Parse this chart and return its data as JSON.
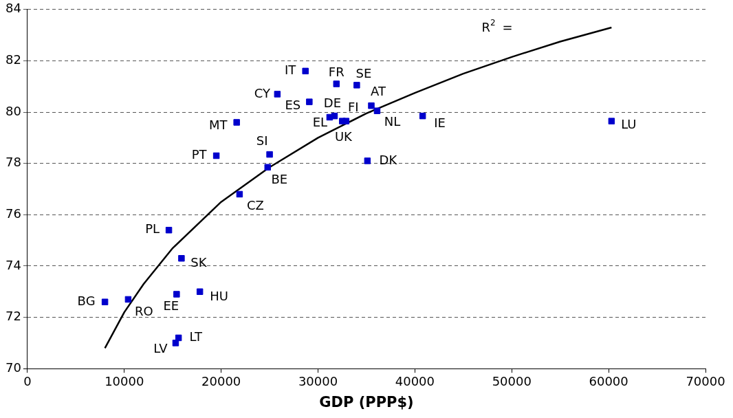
{
  "chart_data": {
    "type": "scatter",
    "xlabel": "GDP (PPP$)",
    "xlim": [
      0,
      70000
    ],
    "xticks": [
      0,
      10000,
      20000,
      30000,
      40000,
      50000,
      60000,
      70000
    ],
    "ylim": [
      70,
      84
    ],
    "yticks": [
      70,
      72,
      74,
      76,
      78,
      80,
      82,
      84
    ],
    "grid": "y",
    "legend": false,
    "marker": "square",
    "series": [
      {
        "color": "#0000cc",
        "x": [
          28700,
          31900,
          34000,
          25800,
          29100,
          31700,
          31200,
          32500,
          32900,
          35500,
          36100,
          40800,
          60300,
          35100,
          21600,
          19500,
          25000,
          24800,
          21900,
          14600,
          15900,
          17800,
          15400,
          8000,
          10400,
          15600,
          15300
        ],
        "values": [
          81.6,
          81.1,
          81.05,
          80.7,
          80.4,
          79.85,
          79.8,
          79.65,
          79.65,
          80.25,
          80.05,
          79.85,
          79.65,
          78.1,
          79.6,
          78.3,
          78.35,
          77.85,
          76.8,
          75.4,
          74.3,
          73,
          72.9,
          72.6,
          72.7,
          71.2,
          71
        ]
      },
      {
        "type": "line",
        "color": "#000000",
        "marker": "none",
        "x": [
          8000,
          10000,
          12000,
          15000,
          20000,
          25000,
          30000,
          35000,
          40000,
          45000,
          50000,
          55000,
          60300
        ],
        "values": [
          70.8,
          72.2,
          73.3,
          74.7,
          76.5,
          77.85,
          79,
          79.95,
          80.75,
          81.5,
          82.15,
          82.75,
          83.3
        ]
      }
    ],
    "annotations": [
      {
        "text": "IT",
        "x": 28700,
        "y": 81.6
      },
      {
        "text": "FR",
        "x": 31900,
        "y": 81.1
      },
      {
        "text": "SE",
        "x": 34000,
        "y": 81.05
      },
      {
        "text": "CY",
        "x": 25800,
        "y": 80.7
      },
      {
        "text": "ES",
        "x": 29100,
        "y": 80.4
      },
      {
        "text": "DE",
        "x": 31700,
        "y": 79.85
      },
      {
        "text": "EL",
        "x": 31200,
        "y": 79.8
      },
      {
        "text": "FI",
        "x": 32500,
        "y": 79.65
      },
      {
        "text": "UK",
        "x": 32900,
        "y": 79.65
      },
      {
        "text": "AT",
        "x": 35500,
        "y": 80.25
      },
      {
        "text": "NL",
        "x": 36100,
        "y": 80.05
      },
      {
        "text": "IE",
        "x": 40800,
        "y": 79.85
      },
      {
        "text": "LU",
        "x": 60300,
        "y": 79.65
      },
      {
        "text": "DK",
        "x": 35100,
        "y": 78.1
      },
      {
        "text": "MT",
        "x": 21600,
        "y": 79.6
      },
      {
        "text": "PT",
        "x": 19500,
        "y": 78.3
      },
      {
        "text": "SI",
        "x": 25000,
        "y": 78.35
      },
      {
        "text": "BE",
        "x": 24800,
        "y": 77.85
      },
      {
        "text": "CZ",
        "x": 21900,
        "y": 76.8
      },
      {
        "text": "PL",
        "x": 14600,
        "y": 75.4
      },
      {
        "text": "SK",
        "x": 15900,
        "y": 74.3
      },
      {
        "text": "HU",
        "x": 17800,
        "y": 73
      },
      {
        "text": "EE",
        "x": 15400,
        "y": 72.9
      },
      {
        "text": "BG",
        "x": 8000,
        "y": 72.6
      },
      {
        "text": "RO",
        "x": 10400,
        "y": 72.7
      },
      {
        "text": "LT",
        "x": 15600,
        "y": 71.2
      },
      {
        "text": "LV",
        "x": 15300,
        "y": 71
      },
      "R$^{2}$ ="
    ]
  }
}
